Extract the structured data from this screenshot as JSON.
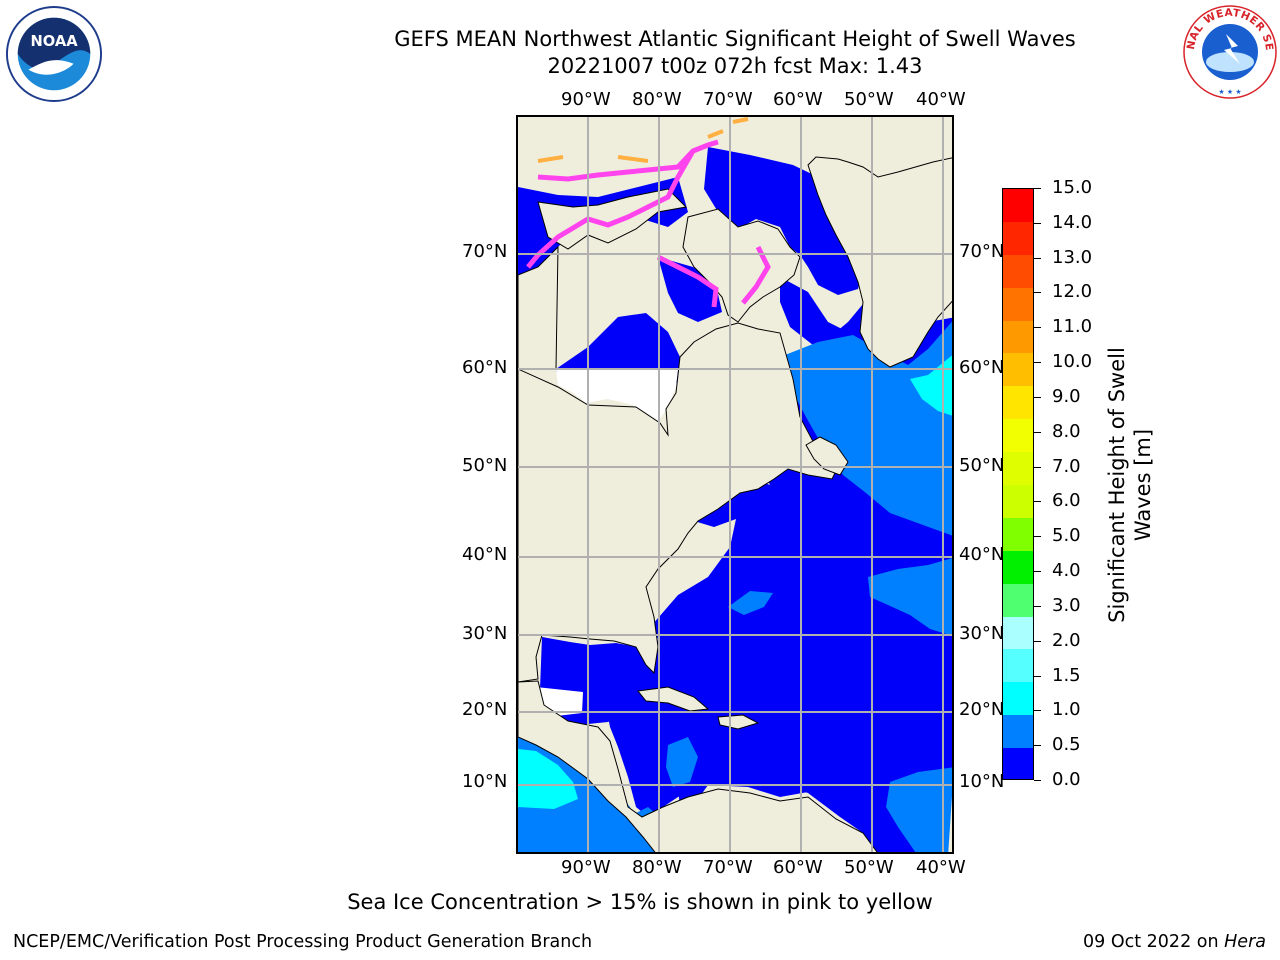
{
  "header": {
    "title_line1": "GEFS MEAN Northwest Atlantic Significant Height of Swell Waves",
    "title_line2": "20221007 t00z 072h fcst   Max: 1.43"
  },
  "logos": {
    "noaa_label": "NOAA",
    "nws_label": "NATIONAL WEATHER SERVICE"
  },
  "map": {
    "lon_labels": [
      "90°W",
      "80°W",
      "70°W",
      "60°W",
      "50°W",
      "40°W"
    ],
    "lat_labels": [
      "70°N",
      "60°N",
      "50°N",
      "40°N",
      "30°N",
      "20°N",
      "10°N"
    ],
    "colors": {
      "land": "#efeddc",
      "ocean_low": "#0000fa",
      "ocean_mid": "#0080ff",
      "ocean_high": "#00ffff",
      "ice_pink": "#ff44ee",
      "ice_orange": "#ffb040",
      "grid": "#b0b0b0"
    }
  },
  "colorbar": {
    "tick_labels": [
      "15.0",
      "14.0",
      "13.0",
      "12.0",
      "11.0",
      "10.0",
      "9.0",
      "8.0",
      "7.0",
      "6.0",
      "5.0",
      "4.0",
      "3.0",
      "2.0",
      "1.5",
      "1.0",
      "0.5",
      "0.0"
    ],
    "colors_top_to_bottom": [
      "#ff0000",
      "#ff2600",
      "#ff4c00",
      "#ff7300",
      "#ff9900",
      "#ffbf00",
      "#ffe500",
      "#f2ff00",
      "#dfff00",
      "#ccff00",
      "#80ff00",
      "#00f000",
      "#50ff70",
      "#aaffff",
      "#55ffff",
      "#00ffff",
      "#0080ff",
      "#0000ff"
    ],
    "label": "Significant Height of Swell Waves [m]",
    "label_line1": "Significant Height of Swell",
    "label_line2": "Waves [m]"
  },
  "footer": {
    "note": "Sea Ice Concentration > 15% is shown in pink to yellow",
    "left": "NCEP/EMC/Verification Post Processing Product Generation Branch",
    "right_prefix": "09 Oct 2022 on ",
    "right_host": "Hera"
  }
}
